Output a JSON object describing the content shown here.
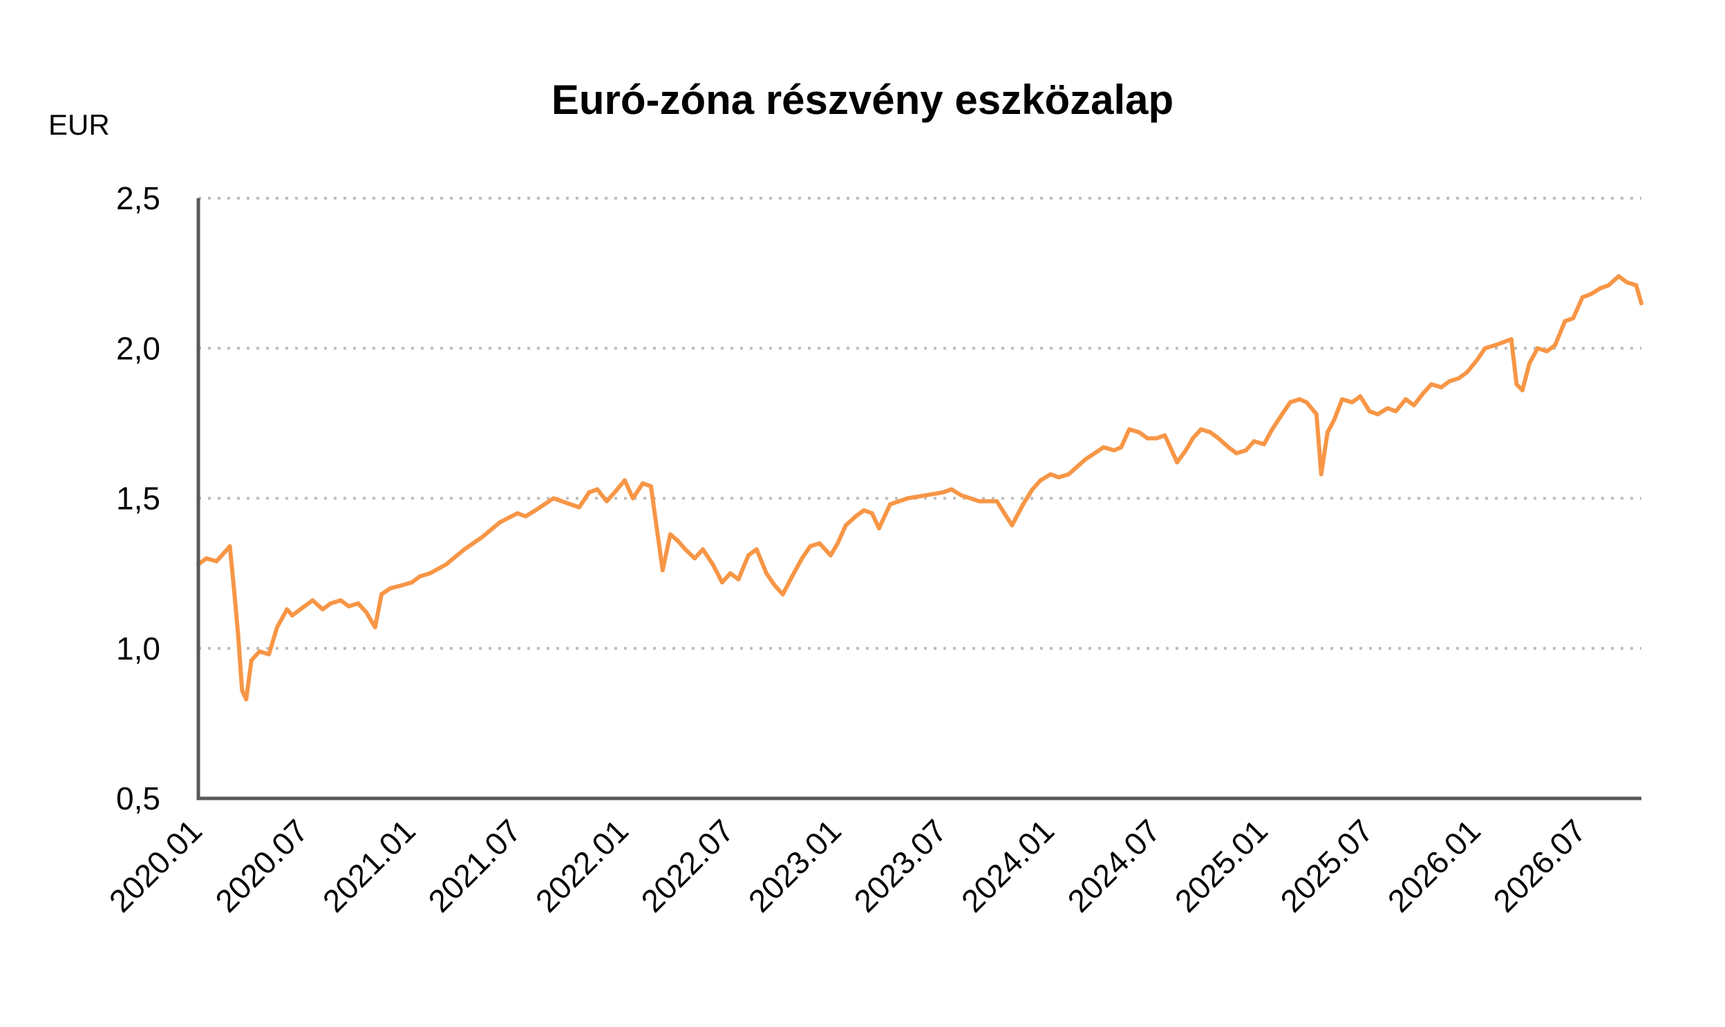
{
  "chart_data": {
    "type": "line",
    "title": "Euró-zóna részvény eszközalap",
    "ylabel": "EUR",
    "ylim": [
      0.5,
      2.5
    ],
    "y_ticks": [
      "0,5",
      "1,0",
      "1,5",
      "2,0",
      "2,5"
    ],
    "y_tick_values": [
      0.5,
      1.0,
      1.5,
      2.0,
      2.5
    ],
    "x_ticks": [
      "2020.01",
      "2020.07",
      "2021.01",
      "2021.07",
      "2022.01",
      "2022.07",
      "2023.01",
      "2023.07",
      "2024.01",
      "2024.07",
      "2025.01",
      "2025.07",
      "2026.01",
      "2026.07"
    ],
    "x_range": [
      "2020-01-01",
      "2026-10-10"
    ],
    "grid": true,
    "line_color": "#F79646",
    "series": [
      {
        "x": [
          "2020-01-01",
          "2020-01-15",
          "2020-02-01",
          "2020-02-15",
          "2020-02-24",
          "2020-03-02",
          "2020-03-09",
          "2020-03-16",
          "2020-03-23",
          "2020-04-01",
          "2020-04-15",
          "2020-05-01",
          "2020-05-15",
          "2020-06-01",
          "2020-06-10",
          "2020-07-01",
          "2020-07-15",
          "2020-08-01",
          "2020-08-15",
          "2020-09-01",
          "2020-09-15",
          "2020-10-01",
          "2020-10-15",
          "2020-10-30",
          "2020-11-10",
          "2020-11-25",
          "2020-12-15",
          "2021-01-01",
          "2021-01-15",
          "2021-02-01",
          "2021-03-01",
          "2021-04-01",
          "2021-05-01",
          "2021-06-01",
          "2021-07-01",
          "2021-07-15",
          "2021-08-01",
          "2021-09-01",
          "2021-09-30",
          "2021-10-15",
          "2021-11-01",
          "2021-11-15",
          "2021-12-01",
          "2021-12-15",
          "2022-01-01",
          "2022-01-15",
          "2022-02-01",
          "2022-02-15",
          "2022-03-07",
          "2022-03-20",
          "2022-04-01",
          "2022-04-15",
          "2022-05-01",
          "2022-05-15",
          "2022-06-01",
          "2022-06-17",
          "2022-07-01",
          "2022-07-15",
          "2022-08-01",
          "2022-08-15",
          "2022-09-01",
          "2022-09-15",
          "2022-09-29",
          "2022-10-15",
          "2022-11-01",
          "2022-11-15",
          "2022-12-01",
          "2022-12-20",
          "2023-01-01",
          "2023-01-15",
          "2023-02-01",
          "2023-02-15",
          "2023-03-01",
          "2023-03-13",
          "2023-04-01",
          "2023-05-01",
          "2023-06-01",
          "2023-07-01",
          "2023-07-15",
          "2023-08-01",
          "2023-09-01",
          "2023-10-01",
          "2023-10-27",
          "2023-11-15",
          "2023-12-01",
          "2023-12-15",
          "2024-01-01",
          "2024-01-15",
          "2024-02-01",
          "2024-03-01",
          "2024-04-01",
          "2024-04-19",
          "2024-05-01",
          "2024-05-15",
          "2024-06-01",
          "2024-06-15",
          "2024-07-01",
          "2024-07-15",
          "2024-08-05",
          "2024-08-20",
          "2024-09-01",
          "2024-09-15",
          "2024-10-01",
          "2024-10-15",
          "2024-11-01",
          "2024-11-15",
          "2024-12-01",
          "2024-12-15",
          "2025-01-01",
          "2025-01-15",
          "2025-02-01",
          "2025-02-15",
          "2025-03-03",
          "2025-03-15",
          "2025-04-01",
          "2025-04-09",
          "2025-04-20",
          "2025-05-01",
          "2025-05-15",
          "2025-06-01",
          "2025-06-15",
          "2025-07-01",
          "2025-07-15",
          "2025-08-01",
          "2025-08-15",
          "2025-09-01",
          "2025-09-15",
          "2025-10-01",
          "2025-10-15",
          "2025-11-01",
          "2025-11-15",
          "2025-12-01",
          "2025-12-15",
          "2026-01-01",
          "2026-01-15",
          "2026-02-01",
          "2026-02-15",
          "2026-03-01",
          "2026-03-10",
          "2026-03-20",
          "2026-04-01",
          "2026-04-15",
          "2026-05-01",
          "2026-05-15",
          "2026-06-01",
          "2026-06-15",
          "2026-07-01",
          "2026-07-15",
          "2026-08-01",
          "2026-08-15",
          "2026-09-01",
          "2026-09-15",
          "2026-10-01",
          "2026-10-10"
        ],
        "y": [
          1.28,
          1.3,
          1.29,
          1.32,
          1.34,
          1.2,
          1.05,
          0.86,
          0.83,
          0.96,
          0.99,
          0.98,
          1.07,
          1.13,
          1.11,
          1.14,
          1.16,
          1.13,
          1.15,
          1.16,
          1.14,
          1.15,
          1.12,
          1.07,
          1.18,
          1.2,
          1.21,
          1.22,
          1.24,
          1.25,
          1.28,
          1.33,
          1.37,
          1.42,
          1.45,
          1.44,
          1.46,
          1.5,
          1.48,
          1.47,
          1.52,
          1.53,
          1.49,
          1.52,
          1.56,
          1.5,
          1.55,
          1.54,
          1.26,
          1.38,
          1.36,
          1.33,
          1.3,
          1.33,
          1.28,
          1.22,
          1.25,
          1.23,
          1.31,
          1.33,
          1.25,
          1.21,
          1.18,
          1.24,
          1.3,
          1.34,
          1.35,
          1.31,
          1.35,
          1.41,
          1.44,
          1.46,
          1.45,
          1.4,
          1.48,
          1.5,
          1.51,
          1.52,
          1.53,
          1.51,
          1.49,
          1.49,
          1.41,
          1.48,
          1.53,
          1.56,
          1.58,
          1.57,
          1.58,
          1.63,
          1.67,
          1.66,
          1.67,
          1.73,
          1.72,
          1.7,
          1.7,
          1.71,
          1.62,
          1.66,
          1.7,
          1.73,
          1.72,
          1.7,
          1.67,
          1.65,
          1.66,
          1.69,
          1.68,
          1.73,
          1.78,
          1.82,
          1.83,
          1.82,
          1.78,
          1.58,
          1.72,
          1.76,
          1.83,
          1.82,
          1.84,
          1.79,
          1.78,
          1.8,
          1.79,
          1.83,
          1.81,
          1.85,
          1.88,
          1.87,
          1.89,
          1.9,
          1.92,
          1.96,
          2.0,
          2.01,
          2.02,
          2.03,
          1.88,
          1.86,
          1.95,
          2.0,
          1.99,
          2.01,
          2.09,
          2.1,
          2.17,
          2.18,
          2.2,
          2.21,
          2.24,
          2.22,
          2.21,
          2.15
        ]
      }
    ]
  }
}
